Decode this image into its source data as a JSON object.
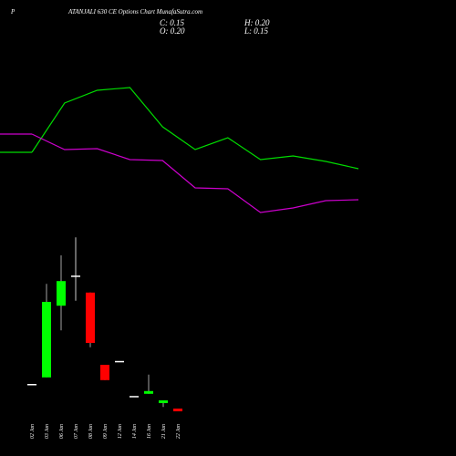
{
  "chart_data": {
    "type": "candlestick",
    "title_prefix": "P",
    "title": "ATANJALI 630 CE Options Chart MunafaSutra.com",
    "ohlc_labels": [
      "C: 0.15",
      "H: 0.20",
      "O: 0.20",
      "L: 0.15"
    ],
    "categories": [
      "02 Jan",
      "03 Jan",
      "06 Jan",
      "07 Jan",
      "08 Jan",
      "09 Jan",
      "12 Jan",
      "14 Jan",
      "16 Jan",
      "21 Jan",
      "22 Jan"
    ],
    "open": [
      0.65,
      0.77,
      2.08,
      2.63,
      2.32,
      1.0,
      1.07,
      0.43,
      0.47,
      0.3,
      0.2
    ],
    "high": [
      0.65,
      2.48,
      3.0,
      3.33,
      2.32,
      1.0,
      1.07,
      0.43,
      0.82,
      0.35,
      0.2
    ],
    "low": [
      0.65,
      0.77,
      1.63,
      2.17,
      1.32,
      0.72,
      1.07,
      0.43,
      0.47,
      0.23,
      0.15
    ],
    "close": [
      0.65,
      2.15,
      2.53,
      2.63,
      1.4,
      0.72,
      1.07,
      0.43,
      0.52,
      0.35,
      0.15
    ],
    "up_color": "#00ff00",
    "down_color": "#ff0000",
    "flat_color": "#ffffff",
    "ylim": [
      0,
      3.5
    ],
    "line_ylim": [
      0,
      20
    ],
    "series": [
      {
        "color": "#00dd00",
        "values": [
          10.64,
          14.96,
          16.08,
          16.32,
          12.88,
          10.88,
          11.92,
          10.0,
          10.32,
          9.84,
          9.2
        ]
      },
      {
        "color": "#cc00cc",
        "values": [
          12.24,
          10.88,
          10.96,
          10.0,
          9.92,
          7.52,
          7.44,
          5.36,
          5.76,
          6.4,
          6.48
        ]
      }
    ]
  }
}
